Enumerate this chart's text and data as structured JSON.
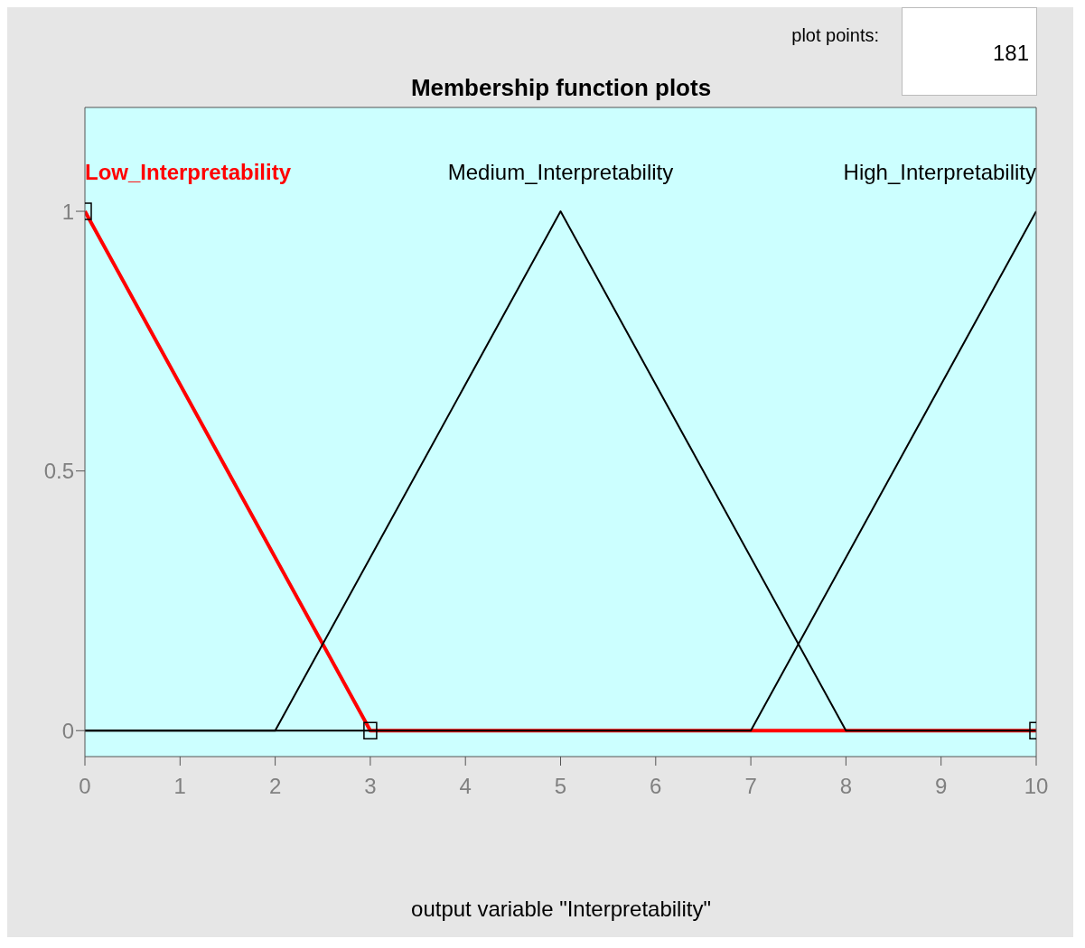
{
  "chart_data": {
    "type": "line",
    "title": "Membership function plots",
    "xlabel": "output variable \"Interpretability\"",
    "annotations": [
      "plot points:",
      "181"
    ],
    "xlim": [
      0,
      10
    ],
    "xticks": [
      0,
      1,
      2,
      3,
      4,
      5,
      6,
      7,
      8,
      9,
      10
    ],
    "ylim": [
      -0.05,
      1.2
    ],
    "yticks": [
      0,
      0.5,
      1
    ],
    "grid": false,
    "line_style": "solid",
    "series": [
      {
        "name": "Low_Interpretability",
        "color": "#ff0000",
        "x": [
          0,
          3,
          10
        ],
        "values": [
          1,
          0,
          0
        ],
        "marker": "square"
      },
      {
        "name": "Medium_Interpretability",
        "color": "#000000",
        "x": [
          0,
          2,
          5,
          8,
          10
        ],
        "values": [
          0,
          0,
          1,
          0,
          0
        ],
        "marker": "none"
      },
      {
        "name": "High_Interpretability",
        "color": "#000000",
        "x": [
          0,
          7,
          10
        ],
        "values": [
          0,
          0,
          1
        ],
        "marker": "none"
      }
    ]
  }
}
